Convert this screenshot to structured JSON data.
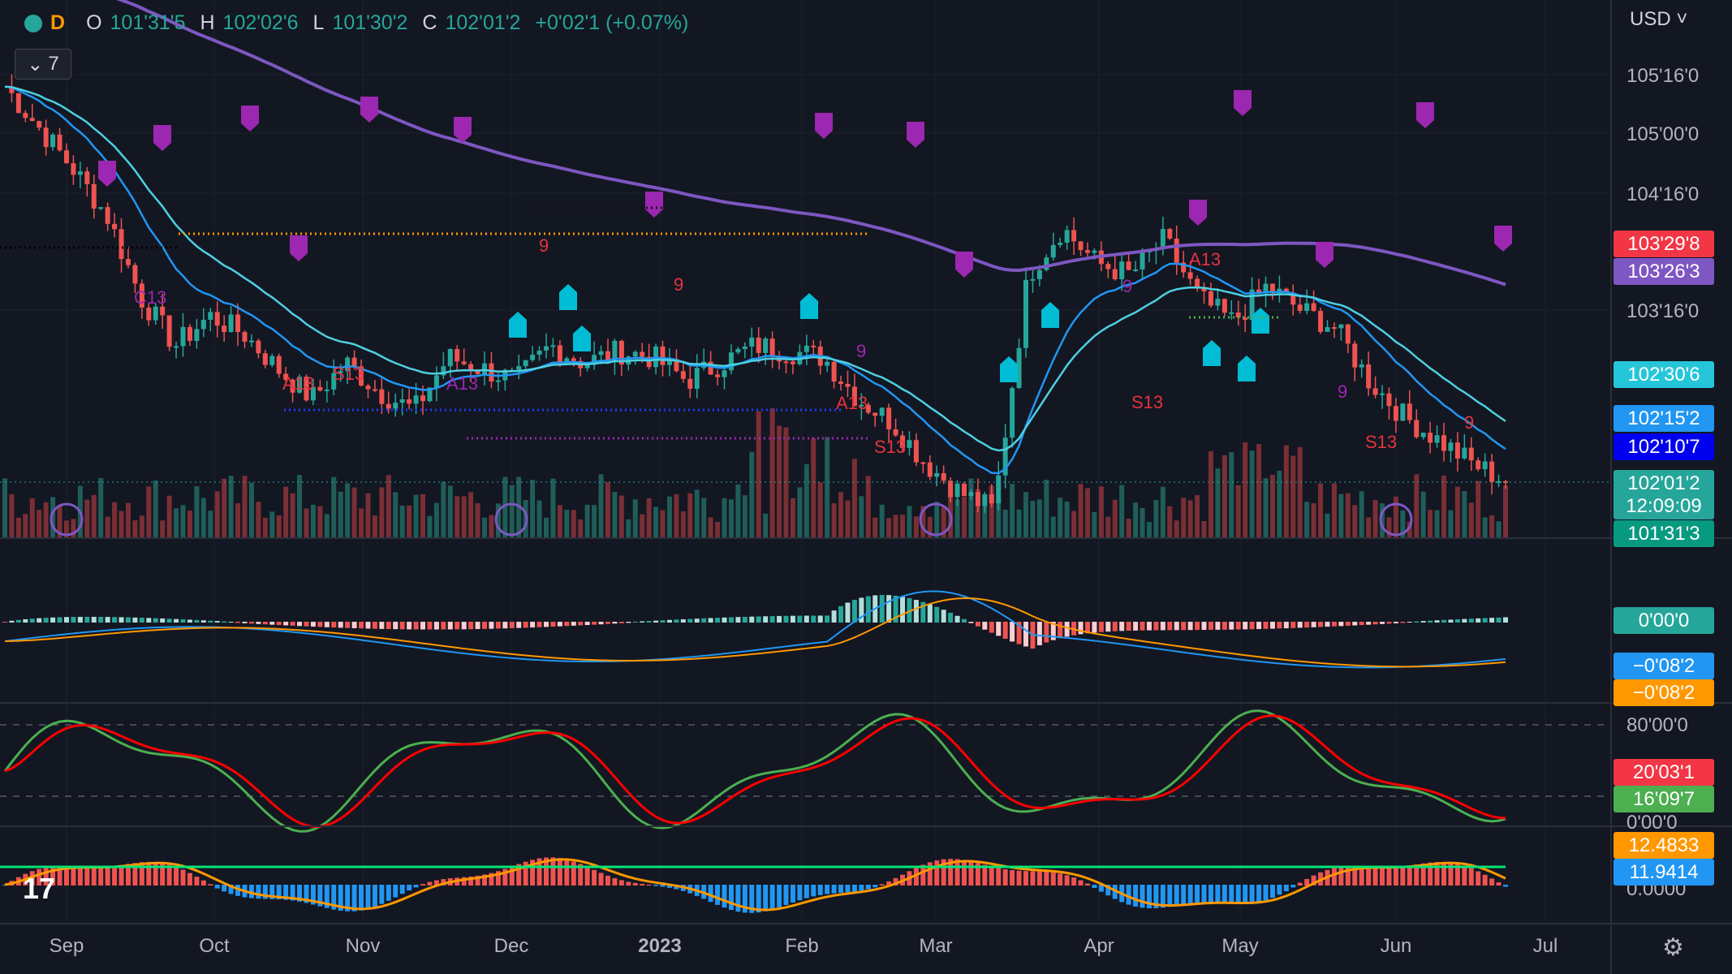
{
  "header": {
    "interval": "D",
    "open_label": "O",
    "open": "101'31'5",
    "high_label": "H",
    "high": "102'02'6",
    "low_label": "L",
    "low": "101'30'2",
    "close_label": "C",
    "close": "102'01'2",
    "change": "+0'02'1 (+0.07%)",
    "indicators_toggle": "7"
  },
  "currency": "USD",
  "colors": {
    "up": "#26a69a",
    "down": "#ef5350",
    "ema_fast": "#2196f3",
    "ema_mid": "#4dd0e1",
    "ema_slow": "#7e57c2",
    "macd": "#2196f3",
    "signal": "#ff9800",
    "stoch_k": "#4caf50",
    "stoch_d": "#ff0000",
    "background": "#131722"
  },
  "chart_data": [
    {
      "type": "candlestick",
      "panel": "price",
      "x_ticks": [
        "Sep",
        "Oct",
        "Nov",
        "Dec",
        "2023",
        "Feb",
        "Mar",
        "Apr",
        "May",
        "Jun",
        "Jul"
      ],
      "y_ticks": [
        "105'16'0",
        "105'00'0",
        "104'16'0",
        "103'16'0"
      ],
      "close_path": [
        105.4,
        105.05,
        104.7,
        104.3,
        103.6,
        103.2,
        103.45,
        103.3,
        103.0,
        102.75,
        103.05,
        102.8,
        102.65,
        103.1,
        103.0,
        102.9,
        103.2,
        103.05,
        103.15,
        103.1,
        102.9,
        103.05,
        103.2,
        103.15,
        103.1,
        102.75,
        102.55,
        102.2,
        101.95,
        101.8,
        103.8,
        104.2,
        103.9,
        103.8,
        104.1,
        103.6,
        103.4,
        103.7,
        103.5,
        103.35,
        102.9,
        102.6,
        102.4,
        102.2,
        102.05
      ],
      "price_labels": [
        {
          "text": "103'29'8",
          "color": "#f23645"
        },
        {
          "text": "103'26'3",
          "color": "#7e57c2"
        },
        {
          "text": "102'30'6",
          "color": "#26c6da"
        },
        {
          "text": "102'15'2",
          "color": "#2196f3"
        },
        {
          "text": "102'10'7",
          "color": "#0000ee"
        },
        {
          "text": "102'01'2",
          "color": "#26a69a"
        },
        {
          "text": "12:09:09",
          "color": "#26a69a"
        },
        {
          "text": "101'31'3",
          "color": "#089981"
        }
      ],
      "annotations": [
        "C13",
        "A13",
        "S13",
        "A13",
        "9",
        "9",
        "9",
        "A13",
        "S13",
        "9",
        "S13",
        "A13",
        "9",
        "S13",
        "9"
      ]
    },
    {
      "type": "histogram+line",
      "panel": "macd",
      "y_labels": [
        {
          "text": "0'00'0",
          "color": "#26a69a"
        },
        {
          "text": "−0'08'2",
          "color": "#2196f3"
        },
        {
          "text": "−0'08'2",
          "color": "#ff9800"
        }
      ]
    },
    {
      "type": "line",
      "panel": "stochastic",
      "y_ticks": [
        "80'00'0",
        "0'00'0"
      ],
      "y_labels": [
        {
          "text": "20'03'1",
          "color": "#f23645"
        },
        {
          "text": "16'09'7",
          "color": "#4caf50"
        }
      ]
    },
    {
      "type": "histogram+line",
      "panel": "oscillator",
      "y_ticks": [
        "0.0000"
      ],
      "y_labels": [
        {
          "text": "12.4833",
          "color": "#ff9800"
        },
        {
          "text": "11.9414",
          "color": "#2196f3"
        }
      ]
    }
  ]
}
